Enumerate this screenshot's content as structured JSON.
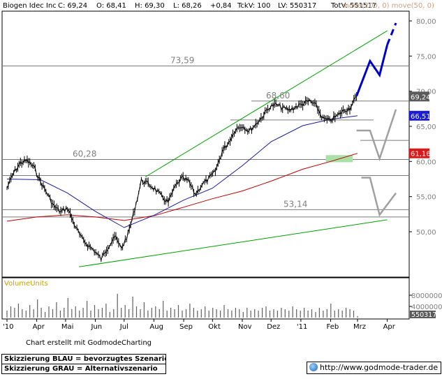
{
  "header": {
    "symbol": "Biogen Idec Inc",
    "close": "C: 69,24",
    "open": "O: 68,41",
    "high": "H: 69,30",
    "low": "L: 68,26",
    "change": "+0,84",
    "tick_volume": "TckV: 100",
    "last_volume": "LV: 550317",
    "total_volume": "TotV: 551517",
    "ma_labels": "move(200, 0)  move(50, 0)"
  },
  "price_axis": {
    "ticks": [
      "80,00",
      "75,00",
      "70,00",
      "65,00",
      "60,00",
      "55,00",
      "50,00"
    ],
    "badges": [
      {
        "label": "69,24",
        "value": 69.24,
        "bg": "#5a5a5a"
      },
      {
        "label": "66,51",
        "value": 66.51,
        "bg": "#1a1ad8"
      },
      {
        "label": "61,16",
        "value": 61.16,
        "bg": "#d81a1a"
      }
    ]
  },
  "levels": [
    {
      "label": "73,59",
      "value": 73.59
    },
    {
      "label": "68,60",
      "value": 68.6
    },
    {
      "label": "60,28",
      "value": 60.28
    },
    {
      "label": "53,14",
      "value": 53.14
    }
  ],
  "volume": {
    "title": "VolumeUnits",
    "ticks": [
      "8000000",
      "4000000"
    ],
    "badge": "550317"
  },
  "months": [
    "'10",
    "Apr",
    "Mai",
    "Jun",
    "Jul",
    "Aug",
    "Sep",
    "Okt",
    "Nov",
    "Dez",
    "'11",
    "Feb",
    "Mrz",
    "Apr"
  ],
  "footer": {
    "credit": "Chart erstellt mit GodmodeCharting",
    "legend_blue": "Skizzierung BLAU = bevorzugtes Szenario",
    "legend_grey": "Skizzierung GRAU = Alternativszenario",
    "website": "http://www.godmode-trader.de"
  },
  "colors": {
    "price": "#000000",
    "ma50": "#1a1a9c",
    "ma200": "#c00000",
    "trend_channel": "#00a000",
    "blue_scenario": "#0000c8",
    "grey_scenario": "#a0a0a0",
    "support_zone": "#a8e0a8",
    "volume_bars": "#606060"
  },
  "chart_data": {
    "type": "line",
    "title": "Biogen Idec Inc",
    "ylim": [
      45,
      80.5
    ],
    "price_series": {
      "name": "Biogen Idec Inc",
      "x": [
        "2010-03-01",
        "2010-03-08",
        "2010-03-15",
        "2010-03-22",
        "2010-03-29",
        "2010-04-05",
        "2010-04-12",
        "2010-04-19",
        "2010-04-26",
        "2010-05-03",
        "2010-05-10",
        "2010-05-17",
        "2010-05-24",
        "2010-05-31",
        "2010-06-07",
        "2010-06-14",
        "2010-06-21",
        "2010-06-28",
        "2010-07-05",
        "2010-07-12",
        "2010-07-19",
        "2010-07-26",
        "2010-08-02",
        "2010-08-09",
        "2010-08-16",
        "2010-08-23",
        "2010-08-30",
        "2010-09-06",
        "2010-09-13",
        "2010-09-20",
        "2010-09-27",
        "2010-10-04",
        "2010-10-11",
        "2010-10-18",
        "2010-10-25",
        "2010-11-01",
        "2010-11-08",
        "2010-11-15",
        "2010-11-22",
        "2010-11-29",
        "2010-12-06",
        "2010-12-13",
        "2010-12-20",
        "2010-12-27",
        "2011-01-03",
        "2011-01-10",
        "2011-01-17",
        "2011-01-24",
        "2011-01-31",
        "2011-02-07",
        "2011-02-14",
        "2011-02-21",
        "2011-02-28"
      ],
      "y": [
        56.2,
        58.4,
        59.8,
        60.1,
        59.2,
        57.1,
        55.4,
        53.6,
        52.8,
        53.4,
        51.1,
        49.2,
        48.1,
        47.3,
        46.1,
        47.8,
        49.4,
        47.6,
        49.6,
        53.2,
        57.3,
        56.8,
        56.1,
        55.0,
        54.2,
        56.4,
        57.6,
        57.2,
        55.3,
        56.7,
        57.5,
        58.6,
        61.4,
        62.8,
        64.6,
        65.1,
        64.3,
        65.3,
        66.4,
        67.7,
        68.1,
        67.6,
        67.3,
        67.8,
        68.2,
        68.6,
        67.9,
        66.1,
        65.8,
        66.4,
        67.2,
        67.6,
        69.24
      ]
    },
    "ma50": {
      "name": "move(50, 0)",
      "x": [
        "2010-03-01",
        "2010-04-05",
        "2010-05-03",
        "2010-06-01",
        "2010-07-01",
        "2010-08-02",
        "2010-09-01",
        "2010-10-01",
        "2010-11-01",
        "2010-12-01",
        "2011-01-03",
        "2011-02-01",
        "2011-03-01"
      ],
      "y": [
        57.5,
        57.4,
        55.5,
        52.9,
        50.6,
        52.4,
        54.5,
        56.2,
        59.4,
        62.8,
        65.1,
        66.0,
        66.51
      ]
    },
    "ma200": {
      "name": "move(200, 0)",
      "x": [
        "2010-03-01",
        "2010-04-01",
        "2010-05-03",
        "2010-06-01",
        "2010-07-01",
        "2010-08-02",
        "2010-09-01",
        "2010-10-01",
        "2010-11-01",
        "2010-12-01",
        "2011-01-03",
        "2011-02-01",
        "2011-03-01"
      ],
      "y": [
        51.5,
        52.1,
        52.4,
        52.1,
        51.6,
        52.3,
        53.5,
        54.7,
        55.8,
        57.2,
        58.9,
        60.0,
        61.16
      ]
    },
    "horizontal_levels": [
      73.59,
      68.6,
      65.9,
      63.0,
      60.28,
      58.0,
      53.14,
      52.1
    ],
    "trend_channel": {
      "upper": [
        {
          "x": "2010-07-23",
          "y": 57.8
        },
        {
          "x": "2011-04-01",
          "y": 78.6
        }
      ],
      "lower": [
        {
          "x": "2010-05-15",
          "y": 45.0
        },
        {
          "x": "2011-04-01",
          "y": 51.7
        }
      ]
    },
    "support_zone": {
      "x_from": "2011-01-27",
      "x_to": "2011-02-24",
      "y_from": 59.9,
      "y_to": 60.9
    },
    "blue_scenario": [
      {
        "x": "2011-02-28",
        "y": 69.3
      },
      {
        "x": "2011-03-14",
        "y": 74.3
      },
      {
        "x": "2011-03-24",
        "y": 72.3
      },
      {
        "x": "2011-04-01",
        "y": 76.6
      },
      {
        "x": "2011-04-10",
        "y": 79.7
      }
    ],
    "grey_scenario_1": [
      {
        "x": "2011-02-28",
        "y": 64.4
      },
      {
        "x": "2011-03-14",
        "y": 64.4
      },
      {
        "x": "2011-03-24",
        "y": 60.4
      },
      {
        "x": "2011-04-10",
        "y": 67.4
      }
    ],
    "grey_scenario_2": [
      {
        "x": "2011-03-05",
        "y": 57.7
      },
      {
        "x": "2011-03-14",
        "y": 57.7
      },
      {
        "x": "2011-03-24",
        "y": 52.4
      },
      {
        "x": "2011-04-10",
        "y": 55.5
      }
    ],
    "volume_series": {
      "name": "VolumeUnits",
      "x_from": "2010-03-01",
      "x_to": "2011-03-01",
      "values_millions": [
        2.5,
        4.0,
        3.5,
        5.0,
        3.0,
        2.5,
        4.5,
        3.0,
        6.5,
        3.5,
        2.0,
        4.0,
        3.0,
        5.5,
        2.5,
        3.5,
        7.0,
        3.0,
        4.0,
        2.5,
        3.5,
        6.0,
        2.5,
        4.5,
        3.0,
        3.5,
        5.0,
        2.0,
        3.0,
        8.5,
        3.5,
        4.5,
        3.0,
        7.5,
        4.0,
        3.0,
        5.5,
        2.5,
        3.5,
        4.0,
        3.0,
        6.0,
        2.5,
        3.5,
        3.0,
        4.5,
        2.5,
        3.0,
        5.0,
        3.5,
        2.5,
        3.0,
        4.0,
        2.5,
        3.5,
        3.0,
        2.5,
        4.5,
        3.0,
        2.5,
        3.5,
        3.0,
        2.0,
        3.5,
        2.5,
        3.0,
        2.5,
        3.5,
        4.0,
        2.5,
        3.0,
        2.5,
        3.5,
        3.0,
        2.5,
        4.0,
        3.0,
        2.5,
        3.5,
        2.5,
        3.0,
        2.0,
        3.5,
        2.5,
        3.0,
        5.0,
        2.5,
        3.0,
        2.5,
        3.5,
        3.0,
        2.5,
        0.55
      ]
    }
  }
}
